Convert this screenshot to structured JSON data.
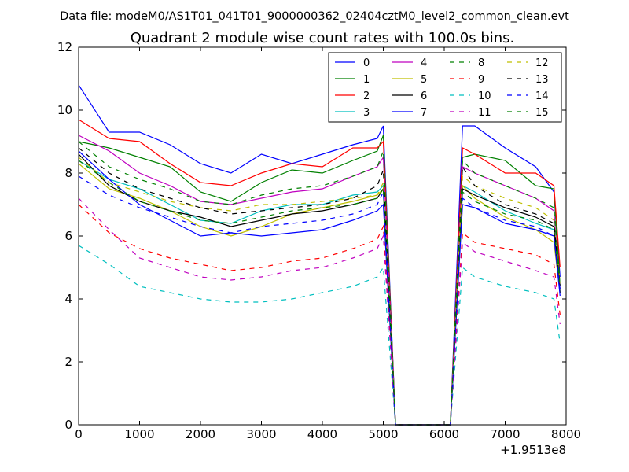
{
  "figure": {
    "suptitle": "Data file: modeM0/AS1T01_041T01_9000000362_02404cztM0_level2_common_clean.evt"
  },
  "chart_data": {
    "type": "line",
    "title": "Quadrant 2 module wise count rates with 100.0s bins.",
    "xlabel": "",
    "ylabel": "",
    "x_offset_label": "+1.9513e8",
    "xlim": [
      0,
      8000
    ],
    "ylim": [
      0,
      12
    ],
    "xticks": [
      0,
      1000,
      2000,
      3000,
      4000,
      5000,
      6000,
      7000,
      8000
    ],
    "yticks": [
      0,
      2,
      4,
      6,
      8,
      10,
      12
    ],
    "grid": false,
    "legend_position": "top-right",
    "x": [
      0,
      500,
      1000,
      1500,
      2000,
      2500,
      3000,
      3500,
      4000,
      4500,
      4900,
      5000,
      5200,
      6100,
      6300,
      6500,
      7000,
      7500,
      7800,
      7900
    ],
    "series": [
      {
        "name": "0",
        "color": "#0000ff",
        "dash": "solid",
        "values": [
          10.8,
          9.3,
          9.3,
          8.9,
          8.3,
          8.0,
          8.6,
          8.3,
          8.6,
          8.9,
          9.1,
          9.5,
          0,
          0,
          9.5,
          9.5,
          8.8,
          8.2,
          7.4,
          4.7
        ]
      },
      {
        "name": "1",
        "color": "#008000",
        "dash": "solid",
        "values": [
          9.0,
          8.8,
          8.5,
          8.2,
          7.4,
          7.1,
          7.7,
          8.1,
          8.0,
          8.4,
          8.7,
          9.2,
          0,
          0,
          8.5,
          8.6,
          8.4,
          7.6,
          7.5,
          4.4
        ]
      },
      {
        "name": "2",
        "color": "#ff0000",
        "dash": "solid",
        "values": [
          9.7,
          9.1,
          9.0,
          8.3,
          7.7,
          7.6,
          8.0,
          8.3,
          8.2,
          8.8,
          8.8,
          9.0,
          0,
          0,
          8.8,
          8.6,
          8.0,
          8.0,
          7.6,
          5.0
        ]
      },
      {
        "name": "3",
        "color": "#00bfbf",
        "dash": "solid",
        "values": [
          8.4,
          7.8,
          7.5,
          7.0,
          6.5,
          6.4,
          6.8,
          7.0,
          7.0,
          7.3,
          7.4,
          7.6,
          0,
          0,
          7.6,
          7.4,
          6.8,
          6.4,
          6.2,
          4.2
        ]
      },
      {
        "name": "4",
        "color": "#bf00bf",
        "dash": "solid",
        "values": [
          9.2,
          8.7,
          8.0,
          7.6,
          7.1,
          7.0,
          7.2,
          7.4,
          7.5,
          7.9,
          8.2,
          8.5,
          0,
          0,
          8.2,
          8.0,
          7.6,
          7.2,
          6.8,
          4.3
        ]
      },
      {
        "name": "5",
        "color": "#bfbf00",
        "dash": "solid",
        "values": [
          8.3,
          7.5,
          7.2,
          6.8,
          6.3,
          6.0,
          6.3,
          6.7,
          6.9,
          7.1,
          7.3,
          7.5,
          0,
          0,
          7.6,
          7.2,
          6.6,
          6.2,
          5.8,
          4.2
        ]
      },
      {
        "name": "6",
        "color": "#000000",
        "dash": "solid",
        "values": [
          8.6,
          7.6,
          7.1,
          6.8,
          6.6,
          6.3,
          6.5,
          6.7,
          6.8,
          7.0,
          7.2,
          7.5,
          0,
          0,
          7.5,
          7.3,
          6.9,
          6.6,
          6.3,
          4.2
        ]
      },
      {
        "name": "7",
        "color": "#0000ff",
        "dash": "solid",
        "values": [
          8.7,
          7.8,
          7.0,
          6.5,
          6.0,
          6.1,
          6.0,
          6.1,
          6.2,
          6.5,
          6.8,
          7.0,
          0,
          0,
          7.0,
          6.9,
          6.4,
          6.2,
          6.0,
          4.1
        ]
      },
      {
        "name": "8",
        "color": "#008000",
        "dash": "dash",
        "values": [
          8.4,
          7.7,
          7.1,
          6.8,
          6.5,
          6.4,
          6.6,
          6.8,
          6.9,
          7.0,
          7.2,
          7.5,
          0,
          0,
          7.4,
          7.1,
          6.7,
          6.5,
          6.2,
          4.3
        ]
      },
      {
        "name": "9",
        "color": "#ff0000",
        "dash": "dash",
        "values": [
          7.0,
          6.1,
          5.6,
          5.3,
          5.1,
          4.9,
          5.0,
          5.2,
          5.3,
          5.6,
          5.9,
          6.3,
          0,
          0,
          6.1,
          5.8,
          5.6,
          5.4,
          5.1,
          3.5
        ]
      },
      {
        "name": "10",
        "color": "#00bfbf",
        "dash": "dash",
        "values": [
          5.7,
          5.1,
          4.4,
          4.2,
          4.0,
          3.9,
          3.9,
          4.0,
          4.2,
          4.4,
          4.7,
          5.0,
          0,
          0,
          5.0,
          4.7,
          4.4,
          4.2,
          4.0,
          2.6
        ]
      },
      {
        "name": "11",
        "color": "#bf00bf",
        "dash": "dash",
        "values": [
          7.2,
          6.2,
          5.3,
          5.0,
          4.7,
          4.6,
          4.7,
          4.9,
          5.0,
          5.3,
          5.6,
          6.0,
          0,
          0,
          5.8,
          5.5,
          5.2,
          4.9,
          4.7,
          3.2
        ]
      },
      {
        "name": "12",
        "color": "#bfbf00",
        "dash": "dash",
        "values": [
          8.5,
          7.7,
          7.4,
          7.1,
          6.9,
          6.8,
          7.0,
          7.0,
          7.1,
          7.2,
          7.3,
          7.7,
          0,
          0,
          7.9,
          7.6,
          7.2,
          6.9,
          6.5,
          4.5
        ]
      },
      {
        "name": "13",
        "color": "#000000",
        "dash": "dash",
        "values": [
          8.8,
          8.0,
          7.5,
          7.2,
          6.9,
          6.7,
          6.8,
          6.9,
          7.0,
          7.2,
          7.6,
          8.1,
          0,
          0,
          8.2,
          7.6,
          7.0,
          6.7,
          6.4,
          4.4
        ]
      },
      {
        "name": "14",
        "color": "#0000ff",
        "dash": "dash",
        "values": [
          7.9,
          7.3,
          6.9,
          6.6,
          6.3,
          6.1,
          6.3,
          6.4,
          6.5,
          6.7,
          7.0,
          7.4,
          0,
          0,
          7.2,
          6.9,
          6.5,
          6.3,
          6.0,
          4.3
        ]
      },
      {
        "name": "15",
        "color": "#008000",
        "dash": "dash",
        "values": [
          9.0,
          8.2,
          7.8,
          7.5,
          7.1,
          7.0,
          7.3,
          7.5,
          7.6,
          7.9,
          8.2,
          8.7,
          0,
          0,
          8.4,
          8.0,
          7.6,
          7.2,
          6.9,
          4.4
        ]
      }
    ]
  }
}
